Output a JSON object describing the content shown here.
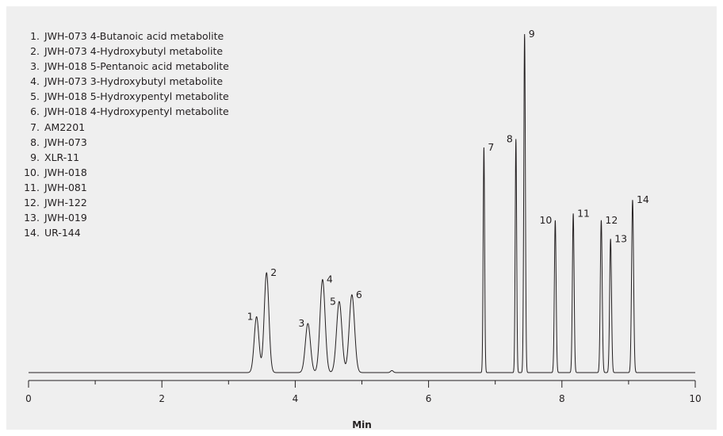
{
  "chart_data": {
    "type": "line",
    "title": "",
    "xlabel": "Min",
    "ylabel": "",
    "xlim": [
      0,
      10
    ],
    "ylim": [
      0,
      100
    ],
    "x_ticks": [
      0,
      2,
      4,
      6,
      8,
      10
    ],
    "x_minor_ticks": [
      1,
      3,
      5,
      7,
      9
    ],
    "grid": false,
    "legend_position": "top-left",
    "line_color": "#231f20",
    "background_color": "#efefef",
    "legend": [
      {
        "num": "1.",
        "name": "JWH-073 4-Butanoic acid metabolite"
      },
      {
        "num": "2.",
        "name": "JWH-073 4-Hydroxybutyl metabolite"
      },
      {
        "num": "3.",
        "name": "JWH-018 5-Pentanoic acid metabolite"
      },
      {
        "num": "4.",
        "name": "JWH-073 3-Hydroxybutyl metabolite"
      },
      {
        "num": "5.",
        "name": "JWH-018 5-Hydroxypentyl metabolite"
      },
      {
        "num": "6.",
        "name": "JWH-018 4-Hydroxypentyl metabolite"
      },
      {
        "num": "7.",
        "name": "AM2201"
      },
      {
        "num": "8.",
        "name": "JWH-073"
      },
      {
        "num": "9.",
        "name": "XLR-11"
      },
      {
        "num": "10.",
        "name": "JWH-018"
      },
      {
        "num": "11.",
        "name": "JWH-081"
      },
      {
        "num": "12.",
        "name": "JWH-122"
      },
      {
        "num": "13.",
        "name": "JWH-019"
      },
      {
        "num": "14.",
        "name": "UR-144"
      }
    ],
    "peaks": [
      {
        "label": "1",
        "rt": 3.42,
        "height": 16.5,
        "width": 0.035,
        "label_side": "left"
      },
      {
        "label": "2",
        "rt": 3.57,
        "height": 29.5,
        "width": 0.035,
        "label_side": "right"
      },
      {
        "label": "3",
        "rt": 4.19,
        "height": 14.5,
        "width": 0.038,
        "label_side": "left"
      },
      {
        "label": "4",
        "rt": 4.41,
        "height": 27.5,
        "width": 0.038,
        "label_side": "right"
      },
      {
        "label": "5",
        "rt": 4.66,
        "height": 21.0,
        "width": 0.04,
        "label_side": "left"
      },
      {
        "label": "6",
        "rt": 4.85,
        "height": 23.0,
        "width": 0.04,
        "label_side": "right"
      },
      {
        "label": "7",
        "rt": 6.83,
        "height": 66.5,
        "width": 0.011,
        "label_side": "right"
      },
      {
        "label": "8",
        "rt": 7.31,
        "height": 69.0,
        "width": 0.011,
        "label_side": "left"
      },
      {
        "label": "9",
        "rt": 7.44,
        "height": 100.0,
        "width": 0.012,
        "label_side": "right"
      },
      {
        "label": "10",
        "rt": 7.9,
        "height": 45.0,
        "width": 0.013,
        "label_side": "left"
      },
      {
        "label": "11",
        "rt": 8.17,
        "height": 47.0,
        "width": 0.013,
        "label_side": "right"
      },
      {
        "label": "12",
        "rt": 8.59,
        "height": 45.0,
        "width": 0.014,
        "label_side": "right"
      },
      {
        "label": "13",
        "rt": 8.73,
        "height": 39.5,
        "width": 0.014,
        "label_side": "right"
      },
      {
        "label": "14",
        "rt": 9.06,
        "height": 51.0,
        "width": 0.015,
        "label_side": "right"
      }
    ],
    "minor_peaks": [
      {
        "rt": 5.45,
        "height": 0.6,
        "width": 0.02
      }
    ]
  }
}
